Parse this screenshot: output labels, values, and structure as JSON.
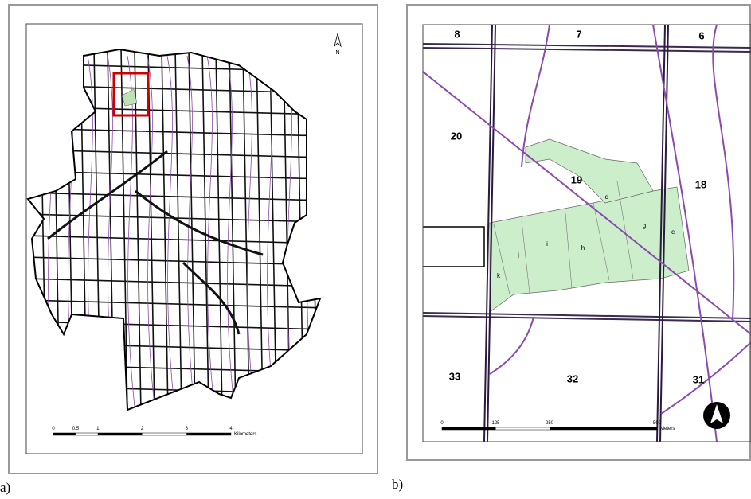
{
  "panels": [
    {
      "label": "a)",
      "north": "N",
      "scale": {
        "ticks": [
          0,
          0.5,
          1,
          2,
          3,
          4
        ],
        "unit": "Kilometers"
      }
    },
    {
      "label": "b)",
      "sections": [
        "8",
        "7",
        "6",
        "20",
        "19",
        "18",
        "33",
        "32",
        "31"
      ],
      "stands": [
        "d",
        "g",
        "c",
        "h",
        "i",
        "j",
        "k"
      ],
      "scale": {
        "ticks": [
          0,
          125,
          250,
          500
        ],
        "unit": "Meters"
      }
    }
  ]
}
